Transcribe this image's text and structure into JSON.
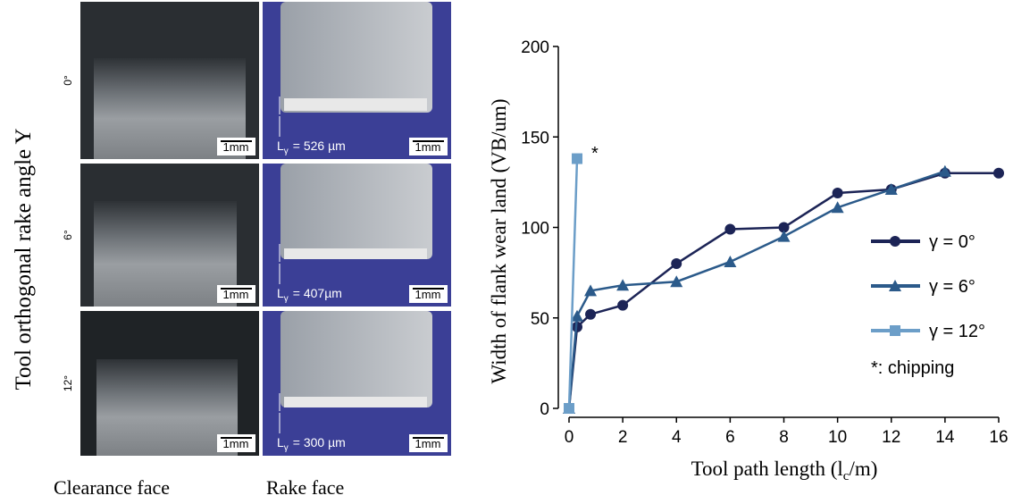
{
  "panel": {
    "y_label": "Tool orthogonal rake angle Y",
    "rows": [
      {
        "angle": "0°",
        "scale_clearance": "1mm",
        "scale_rake": "1mm",
        "length": {
          "symbol": "L",
          "sub": "γ",
          "text": "= 526 µm"
        }
      },
      {
        "angle": "6°",
        "scale_clearance": "1mm",
        "scale_rake": "1mm",
        "length": {
          "symbol": "L",
          "sub": "γ",
          "text": "= 407µm"
        }
      },
      {
        "angle": "12°",
        "scale_clearance": "1mm",
        "scale_rake": "1mm",
        "length": {
          "symbol": "L",
          "sub": "γ",
          "text": "= 300 µm"
        }
      }
    ],
    "column_labels": [
      "Clearance face",
      "Rake face"
    ]
  },
  "chart_data": {
    "type": "line",
    "y_label": "Width of flank wear land (VB/um)",
    "x_label": [
      "Tool path length (l",
      "c",
      "/m)"
    ],
    "xlim": [
      0,
      16
    ],
    "xticks": [
      0,
      2,
      4,
      6,
      8,
      10,
      12,
      14,
      16
    ],
    "ylim": [
      0,
      200
    ],
    "yticks": [
      0,
      50,
      100,
      150,
      200
    ],
    "grid": false,
    "legend": "right",
    "series": [
      {
        "name": "γ = 0°",
        "color": "#1c2456",
        "marker": "circle",
        "x": [
          0,
          0.3,
          0.8,
          2,
          4,
          6,
          8,
          10,
          12,
          14,
          16
        ],
        "values": [
          0,
          45,
          52,
          57,
          80,
          99,
          100,
          119,
          121,
          130,
          130
        ]
      },
      {
        "name": "γ = 6°",
        "color": "#2b5a8a",
        "marker": "triangle",
        "x": [
          0,
          0.3,
          0.8,
          2,
          4,
          6,
          8,
          10,
          12,
          14
        ],
        "values": [
          0,
          51,
          65,
          68,
          70,
          81,
          95,
          111,
          121,
          131
        ]
      },
      {
        "name": "γ = 12°",
        "color": "#6c9ec8",
        "marker": "square",
        "x": [
          0,
          0.3
        ],
        "values": [
          0,
          138
        ]
      }
    ],
    "annotations": [
      "*",
      "*: chipping"
    ]
  }
}
